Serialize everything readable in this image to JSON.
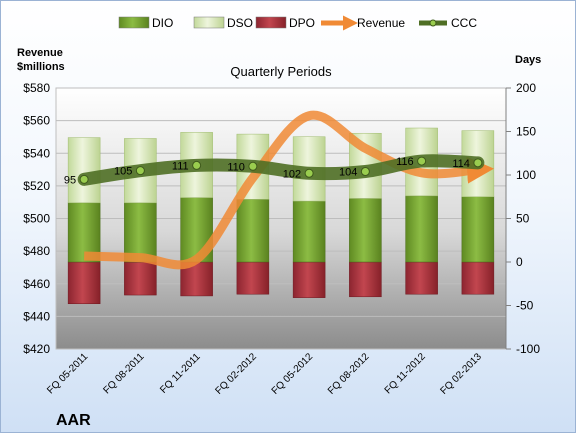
{
  "chart_data": {
    "type": "bar",
    "company": "AAR",
    "title": "Quarterly Periods",
    "y_left_label": [
      "Revenue",
      "$millions"
    ],
    "y_right_label": "Days",
    "y_left_range": [
      420,
      580
    ],
    "y_left_ticks": [
      420,
      440,
      460,
      480,
      500,
      520,
      540,
      560,
      580
    ],
    "y_left_tick_labels": [
      "$420",
      "$440",
      "$460",
      "$480",
      "$500",
      "$520",
      "$540",
      "$560",
      "$580"
    ],
    "y_right_range": [
      -100,
      200
    ],
    "y_right_ticks": [
      -100,
      -50,
      0,
      50,
      100,
      150,
      200
    ],
    "y_right_tick_labels": [
      "-100",
      "-50",
      "0",
      "50",
      "100",
      "150",
      "200"
    ],
    "categories": [
      "FQ 05-2011",
      "FQ 08-2011",
      "FQ 11-2011",
      "FQ 02-2012",
      "FQ 05-2012",
      "FQ 08-2012",
      "FQ 11-2012",
      "FQ 02-2013"
    ],
    "legend": [
      {
        "name": "DIO",
        "type": "bar",
        "color": "#77a033"
      },
      {
        "name": "DSO",
        "type": "bar",
        "color": "#d8e8b4"
      },
      {
        "name": "DPO",
        "type": "bar",
        "color": "#a8303a"
      },
      {
        "name": "Revenue",
        "type": "line",
        "color": "#f08a35"
      },
      {
        "name": "CCC",
        "type": "line",
        "color": "#4f6f25"
      }
    ],
    "series": [
      {
        "name": "DIO",
        "axis": "right",
        "values": [
          68,
          68,
          74,
          72,
          70,
          73,
          76,
          75
        ]
      },
      {
        "name": "DSO",
        "axis": "right",
        "values": [
          75,
          74,
          75,
          75,
          74,
          75,
          78,
          76
        ]
      },
      {
        "name": "DPO",
        "axis": "right",
        "values": [
          -48,
          -38,
          -39,
          -37,
          -41,
          -40,
          -37,
          -37
        ]
      },
      {
        "name": "Revenue",
        "axis": "left",
        "values": [
          477,
          476,
          475,
          525,
          563,
          543,
          528,
          530
        ]
      },
      {
        "name": "CCC",
        "axis": "right",
        "values": [
          95,
          105,
          111,
          110,
          102,
          104,
          116,
          114
        ],
        "labels": [
          "95",
          "105",
          "111",
          "110",
          "102",
          "104",
          "116",
          "114"
        ]
      }
    ],
    "grid": true,
    "legend_position": "top"
  }
}
